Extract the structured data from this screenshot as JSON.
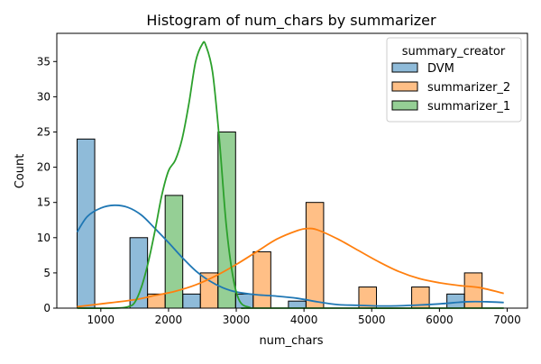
{
  "chart_data": {
    "type": "bar",
    "title": "Histogram of num_chars by summarizer",
    "xlabel": "num_chars",
    "ylabel": "Count",
    "xlim": [
      350,
      7300
    ],
    "ylim": [
      0,
      39
    ],
    "xticks": [
      1000,
      2000,
      3000,
      4000,
      5000,
      6000,
      7000
    ],
    "yticks": [
      0,
      5,
      10,
      15,
      20,
      25,
      30,
      35
    ],
    "bin_edges": [
      650,
      910,
      1170,
      1430,
      1690,
      1950,
      2210,
      2470,
      2730,
      2990,
      3250,
      3510,
      3770,
      4030,
      4290,
      4550,
      4810,
      5070,
      5330,
      5590,
      5850,
      6110,
      6370,
      6630,
      6890
    ],
    "legend": {
      "title": "summary_creator",
      "placement": "top-right"
    },
    "series": [
      {
        "name": "DVM",
        "color": "#1f77b4",
        "bars": [
          {
            "bin": 0,
            "count": 24
          },
          {
            "bin": 3,
            "count": 10
          },
          {
            "bin": 6,
            "count": 2
          },
          {
            "bin": 9,
            "count": 2
          },
          {
            "bin": 12,
            "count": 1
          },
          {
            "bin": 21,
            "count": 2
          }
        ],
        "kde": [
          [
            650,
            10.8
          ],
          [
            800,
            13
          ],
          [
            1000,
            14.2
          ],
          [
            1200,
            14.6
          ],
          [
            1400,
            14.3
          ],
          [
            1600,
            13.2
          ],
          [
            1800,
            11.3
          ],
          [
            2000,
            9.3
          ],
          [
            2200,
            7.2
          ],
          [
            2400,
            5.3
          ],
          [
            2600,
            3.9
          ],
          [
            2800,
            2.9
          ],
          [
            3000,
            2.3
          ],
          [
            3300,
            1.9
          ],
          [
            3600,
            1.7
          ],
          [
            3900,
            1.4
          ],
          [
            4200,
            0.9
          ],
          [
            4500,
            0.5
          ],
          [
            4800,
            0.4
          ],
          [
            5200,
            0.3
          ],
          [
            5600,
            0.4
          ],
          [
            6000,
            0.6
          ],
          [
            6400,
            0.9
          ],
          [
            6700,
            0.9
          ],
          [
            6950,
            0.8
          ]
        ]
      },
      {
        "name": "summarizer_2",
        "color": "#ff7f0e",
        "bars": [
          {
            "bin": 4,
            "count": 2
          },
          {
            "bin": 7,
            "count": 5
          },
          {
            "bin": 10,
            "count": 8
          },
          {
            "bin": 13,
            "count": 15
          },
          {
            "bin": 16,
            "count": 3
          },
          {
            "bin": 19,
            "count": 3
          },
          {
            "bin": 22,
            "count": 5
          }
        ],
        "kde": [
          [
            650,
            0.2
          ],
          [
            1000,
            0.6
          ],
          [
            1500,
            1.2
          ],
          [
            1800,
            1.8
          ],
          [
            2100,
            2.4
          ],
          [
            2400,
            3.3
          ],
          [
            2700,
            4.6
          ],
          [
            3000,
            6.2
          ],
          [
            3300,
            8
          ],
          [
            3600,
            9.8
          ],
          [
            3900,
            11
          ],
          [
            4050,
            11.3
          ],
          [
            4200,
            11.1
          ],
          [
            4500,
            9.8
          ],
          [
            4800,
            8.2
          ],
          [
            5100,
            6.6
          ],
          [
            5400,
            5.2
          ],
          [
            5700,
            4.2
          ],
          [
            6000,
            3.6
          ],
          [
            6300,
            3.2
          ],
          [
            6600,
            2.9
          ],
          [
            6950,
            2.1
          ]
        ]
      },
      {
        "name": "summarizer_1",
        "color": "#2ca02c",
        "bars": [
          {
            "bin": 5,
            "count": 16
          },
          {
            "bin": 8,
            "count": 25
          }
        ],
        "kde": [
          [
            650,
            0
          ],
          [
            1200,
            0
          ],
          [
            1400,
            0.2
          ],
          [
            1500,
            0.8
          ],
          [
            1600,
            3
          ],
          [
            1700,
            6.5
          ],
          [
            1800,
            11
          ],
          [
            1900,
            16
          ],
          [
            2000,
            19.5
          ],
          [
            2100,
            21
          ],
          [
            2200,
            24
          ],
          [
            2300,
            29
          ],
          [
            2400,
            35
          ],
          [
            2500,
            37.5
          ],
          [
            2550,
            37.3
          ],
          [
            2650,
            33.5
          ],
          [
            2750,
            24
          ],
          [
            2850,
            12
          ],
          [
            2950,
            4.5
          ],
          [
            3050,
            1
          ],
          [
            3200,
            0.1
          ],
          [
            3400,
            0
          ],
          [
            6950,
            0
          ]
        ]
      }
    ]
  }
}
